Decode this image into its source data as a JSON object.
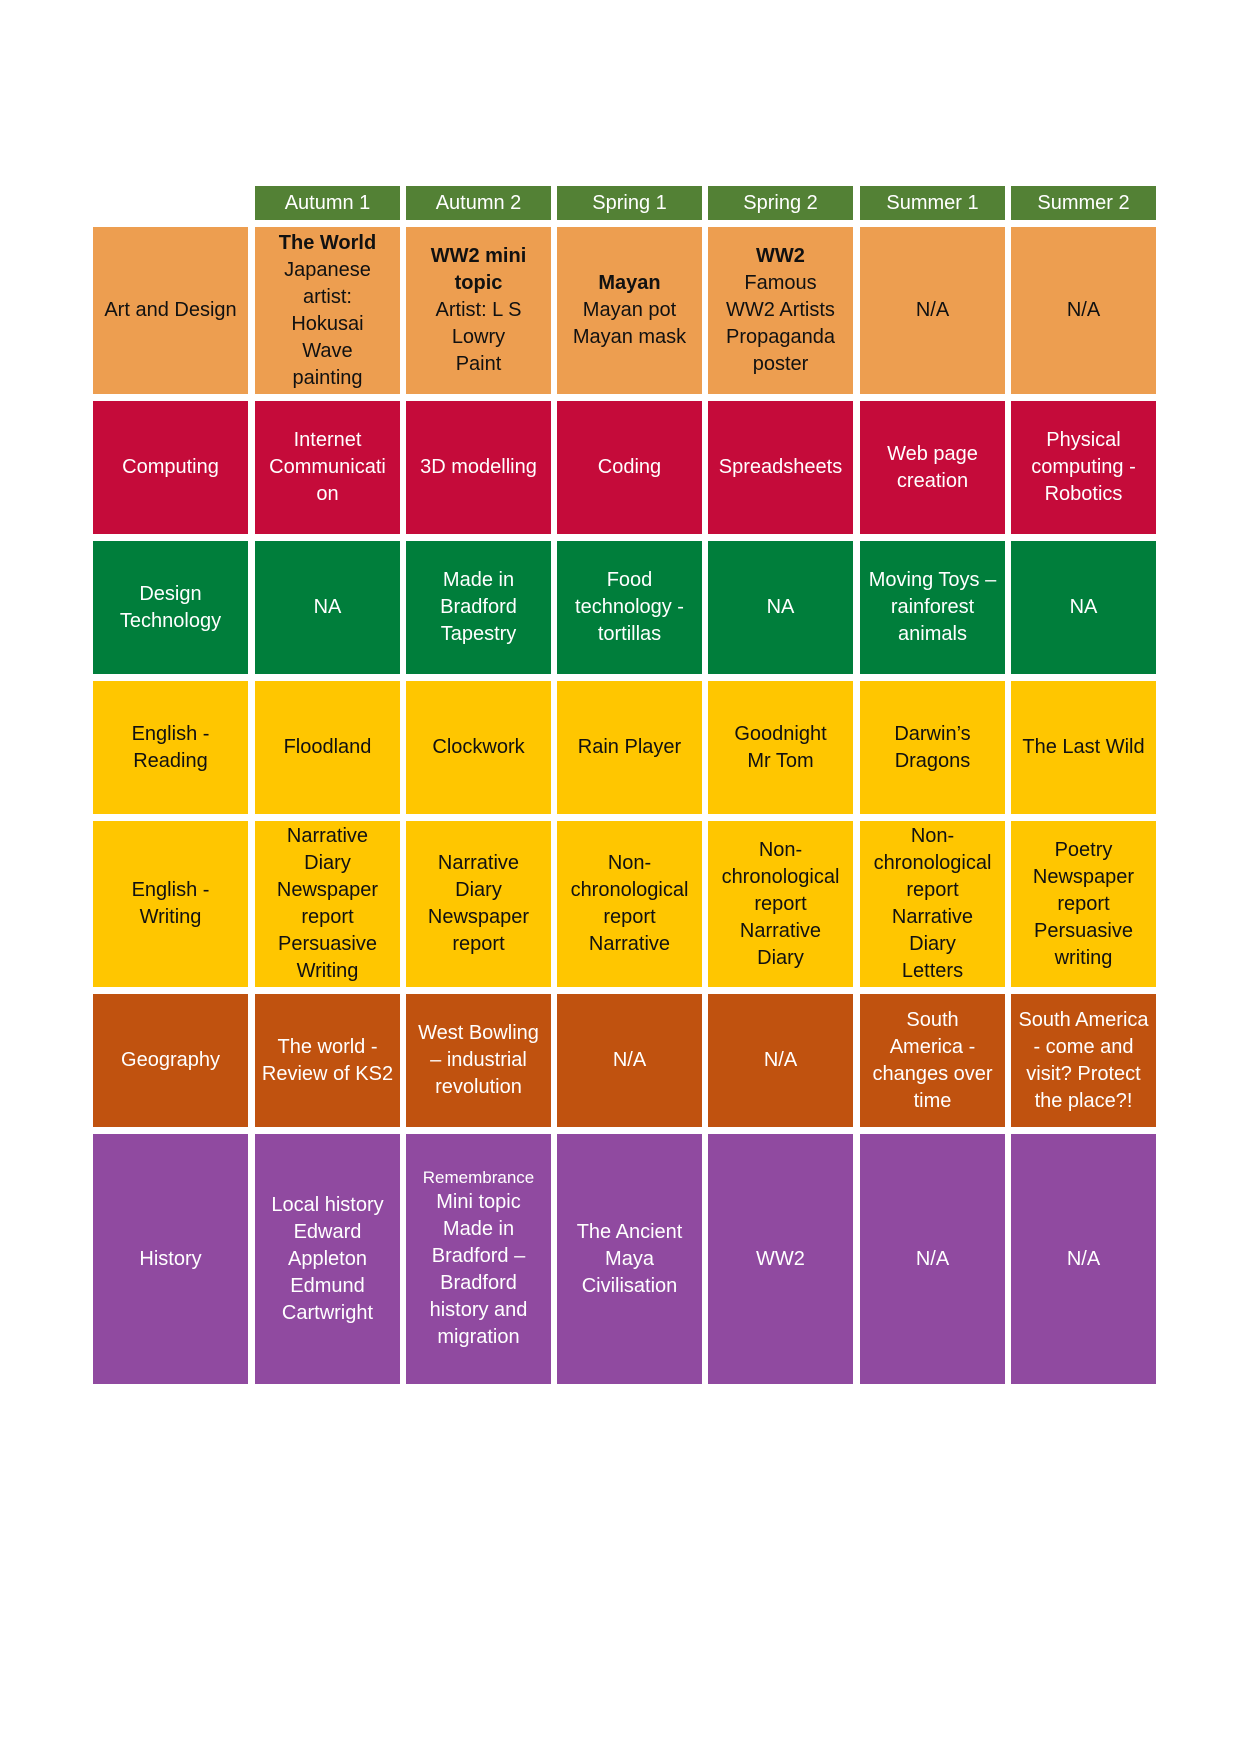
{
  "terms": [
    "Autumn 1",
    "Autumn 2",
    "Spring 1",
    "Spring 2",
    "Summer 1",
    "Summer 2"
  ],
  "colors": {
    "header": "#538135",
    "art": "#ED9E50",
    "computing": "#C50B3A",
    "design": "#007E3B",
    "english": "#FFC600",
    "geography": "#C0520F",
    "history": "#904AA0"
  },
  "subjects": [
    {
      "name": "Art and Design",
      "color_key": "art",
      "text": "dark",
      "cells": [
        [
          {
            "t": "The World",
            "b": true
          },
          {
            "t": "Japanese"
          },
          {
            "t": "artist:"
          },
          {
            "t": "Hokusai"
          },
          {
            "t": "Wave"
          },
          {
            "t": "painting"
          }
        ],
        [
          {
            "t": "WW2 mini",
            "b": true
          },
          {
            "t": "topic",
            "b": true
          },
          {
            "t": "Artist: L S"
          },
          {
            "t": "Lowry"
          },
          {
            "t": "Paint"
          }
        ],
        [
          {
            "t": "Mayan",
            "b": true
          },
          {
            "t": "Mayan pot"
          },
          {
            "t": "Mayan mask"
          }
        ],
        [
          {
            "t": "WW2",
            "b": true
          },
          {
            "t": "Famous"
          },
          {
            "t": "WW2 Artists"
          },
          {
            "t": "Propaganda"
          },
          {
            "t": "poster"
          }
        ],
        [
          {
            "t": "N/A"
          }
        ],
        [
          {
            "t": "N/A"
          }
        ]
      ]
    },
    {
      "name": "Computing",
      "color_key": "computing",
      "text": "light",
      "cells": [
        [
          {
            "t": "Internet"
          },
          {
            "t": "Communicati"
          },
          {
            "t": "on"
          }
        ],
        [
          {
            "t": "3D modelling"
          }
        ],
        [
          {
            "t": "Coding"
          }
        ],
        [
          {
            "t": "Spreadsheets"
          }
        ],
        [
          {
            "t": "Web page"
          },
          {
            "t": "creation"
          }
        ],
        [
          {
            "t": "Physical"
          },
          {
            "t": "computing -"
          },
          {
            "t": "Robotics"
          }
        ]
      ]
    },
    {
      "name": "Design Technology",
      "name_lines": [
        "Design",
        "Technology"
      ],
      "color_key": "design",
      "text": "light",
      "cells": [
        [
          {
            "t": "NA"
          }
        ],
        [
          {
            "t": "Made in"
          },
          {
            "t": "Bradford"
          },
          {
            "t": "Tapestry"
          }
        ],
        [
          {
            "t": "Food"
          },
          {
            "t": "technology -"
          },
          {
            "t": "tortillas"
          }
        ],
        [
          {
            "t": "NA"
          }
        ],
        [
          {
            "t": "Moving Toys –"
          },
          {
            "t": "rainforest"
          },
          {
            "t": "animals"
          }
        ],
        [
          {
            "t": "NA"
          }
        ]
      ]
    },
    {
      "name": "English - Reading",
      "name_lines": [
        "English -",
        "Reading"
      ],
      "color_key": "english",
      "text": "dark",
      "cells": [
        [
          {
            "t": "Floodland"
          }
        ],
        [
          {
            "t": "Clockwork"
          }
        ],
        [
          {
            "t": "Rain Player"
          }
        ],
        [
          {
            "t": "Goodnight"
          },
          {
            "t": "Mr Tom"
          }
        ],
        [
          {
            "t": "Darwin’s"
          },
          {
            "t": "Dragons"
          }
        ],
        [
          {
            "t": "The Last Wild"
          }
        ]
      ]
    },
    {
      "name": "English - Writing",
      "name_lines": [
        "English -",
        "Writing"
      ],
      "color_key": "english",
      "text": "dark",
      "cells": [
        [
          {
            "t": "Narrative"
          },
          {
            "t": "Diary"
          },
          {
            "t": "Newspaper"
          },
          {
            "t": "report"
          },
          {
            "t": "Persuasive"
          },
          {
            "t": "Writing"
          }
        ],
        [
          {
            "t": "Narrative"
          },
          {
            "t": "Diary"
          },
          {
            "t": "Newspaper"
          },
          {
            "t": "report"
          }
        ],
        [
          {
            "t": "Non-"
          },
          {
            "t": "chronological"
          },
          {
            "t": "report"
          },
          {
            "t": "Narrative"
          }
        ],
        [
          {
            "t": "Non-"
          },
          {
            "t": "chronological"
          },
          {
            "t": "report"
          },
          {
            "t": "Narrative"
          },
          {
            "t": "Diary"
          }
        ],
        [
          {
            "t": "Non-"
          },
          {
            "t": "chronological"
          },
          {
            "t": "report"
          },
          {
            "t": "Narrative"
          },
          {
            "t": "Diary"
          },
          {
            "t": "Letters"
          }
        ],
        [
          {
            "t": "Poetry"
          },
          {
            "t": "Newspaper"
          },
          {
            "t": "report"
          },
          {
            "t": "Persuasive"
          },
          {
            "t": "writing"
          }
        ]
      ]
    },
    {
      "name": "Geography",
      "color_key": "geography",
      "text": "light",
      "cells": [
        [
          {
            "t": "The world -"
          },
          {
            "t": "Review of KS2"
          }
        ],
        [
          {
            "t": "West Bowling"
          },
          {
            "t": "– industrial"
          },
          {
            "t": "revolution"
          }
        ],
        [
          {
            "t": "N/A"
          }
        ],
        [
          {
            "t": "N/A"
          }
        ],
        [
          {
            "t": "South"
          },
          {
            "t": "America -"
          },
          {
            "t": "changes over"
          },
          {
            "t": "time"
          }
        ],
        [
          {
            "t": "South America"
          },
          {
            "t": "- come and"
          },
          {
            "t": "visit? Protect"
          },
          {
            "t": "the place?!"
          }
        ]
      ]
    },
    {
      "name": "History",
      "color_key": "history",
      "text": "light",
      "cells": [
        [
          {
            "t": "Local history"
          },
          {
            "t": "Edward"
          },
          {
            "t": "Appleton"
          },
          {
            "t": "Edmund"
          },
          {
            "t": "Cartwright"
          }
        ],
        [
          {
            "t": "Remembrance",
            "s": true
          },
          {
            "t": "Mini topic"
          },
          {
            "t": "Made in"
          },
          {
            "t": "Bradford –"
          },
          {
            "t": "Bradford"
          },
          {
            "t": "history and"
          },
          {
            "t": "migration"
          }
        ],
        [
          {
            "t": "The Ancient"
          },
          {
            "t": "Maya"
          },
          {
            "t": "Civilisation"
          }
        ],
        [
          {
            "t": "WW2"
          }
        ],
        [
          {
            "t": "N/A"
          }
        ],
        [
          {
            "t": "N/A"
          }
        ]
      ]
    }
  ]
}
